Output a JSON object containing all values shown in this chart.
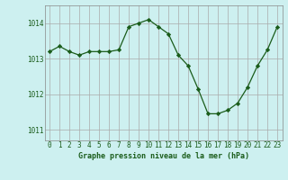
{
  "x": [
    0,
    1,
    2,
    3,
    4,
    5,
    6,
    7,
    8,
    9,
    10,
    11,
    12,
    13,
    14,
    15,
    16,
    17,
    18,
    19,
    20,
    21,
    22,
    23
  ],
  "y": [
    1013.2,
    1013.35,
    1013.2,
    1013.1,
    1013.2,
    1013.2,
    1013.2,
    1013.25,
    1013.9,
    1014.0,
    1014.1,
    1013.9,
    1013.7,
    1013.1,
    1012.8,
    1012.15,
    1011.45,
    1011.45,
    1011.55,
    1011.75,
    1012.2,
    1012.8,
    1013.25,
    1013.9
  ],
  "line_color": "#1a5c1a",
  "marker": "D",
  "marker_size": 2.2,
  "bg_color": "#cdf0f0",
  "grid_color": "#aaaaaa",
  "xlabel": "Graphe pression niveau de la mer (hPa)",
  "xlabel_color": "#1a5c1a",
  "tick_color": "#1a5c1a",
  "label_fontsize": 5.5,
  "xlabel_fontsize": 6.0,
  "ylim": [
    1010.7,
    1014.5
  ],
  "yticks": [
    1011,
    1012,
    1013,
    1014
  ],
  "xlim": [
    -0.5,
    23.5
  ],
  "xticks": [
    0,
    1,
    2,
    3,
    4,
    5,
    6,
    7,
    8,
    9,
    10,
    11,
    12,
    13,
    14,
    15,
    16,
    17,
    18,
    19,
    20,
    21,
    22,
    23
  ]
}
